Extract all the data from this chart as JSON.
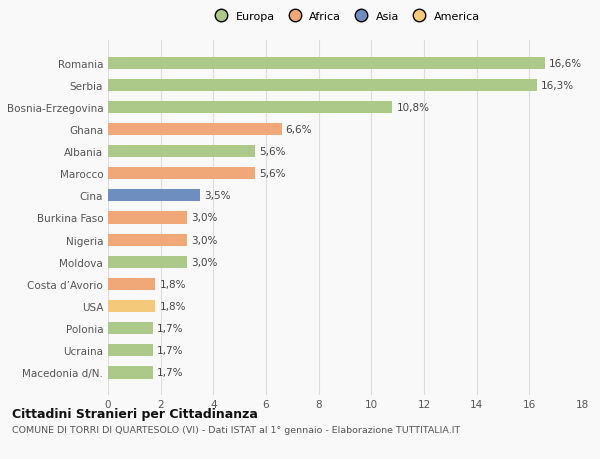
{
  "categories": [
    "Romania",
    "Serbia",
    "Bosnia-Erzegovina",
    "Ghana",
    "Albania",
    "Marocco",
    "Cina",
    "Burkina Faso",
    "Nigeria",
    "Moldova",
    "Costa d’Avorio",
    "USA",
    "Polonia",
    "Ucraina",
    "Macedonia d/N."
  ],
  "values": [
    16.6,
    16.3,
    10.8,
    6.6,
    5.6,
    5.6,
    3.5,
    3.0,
    3.0,
    3.0,
    1.8,
    1.8,
    1.7,
    1.7,
    1.7
  ],
  "colors": [
    "#adc98a",
    "#adc98a",
    "#adc98a",
    "#f0a878",
    "#adc98a",
    "#f0a878",
    "#6e8ebf",
    "#f0a878",
    "#f0a878",
    "#adc98a",
    "#f0a878",
    "#f5c97a",
    "#adc98a",
    "#adc98a",
    "#adc98a"
  ],
  "labels": [
    "16,6%",
    "16,3%",
    "10,8%",
    "6,6%",
    "5,6%",
    "5,6%",
    "3,5%",
    "3,0%",
    "3,0%",
    "3,0%",
    "1,8%",
    "1,8%",
    "1,7%",
    "1,7%",
    "1,7%"
  ],
  "legend": [
    {
      "label": "Europa",
      "color": "#adc98a"
    },
    {
      "label": "Africa",
      "color": "#f0a878"
    },
    {
      "label": "Asia",
      "color": "#6e8ebf"
    },
    {
      "label": "America",
      "color": "#f5c97a"
    }
  ],
  "xlim": [
    0,
    18
  ],
  "xticks": [
    0,
    2,
    4,
    6,
    8,
    10,
    12,
    14,
    16,
    18
  ],
  "title": "Cittadini Stranieri per Cittadinanza",
  "subtitle": "COMUNE DI TORRI DI QUARTESOLO (VI) - Dati ISTAT al 1° gennaio - Elaborazione TUTTITALIA.IT",
  "bg_color": "#f9f9f9",
  "grid_color": "#dddddd",
  "bar_height": 0.55,
  "label_fontsize": 7.5,
  "tick_fontsize": 7.5,
  "title_fontsize": 9,
  "subtitle_fontsize": 6.8
}
